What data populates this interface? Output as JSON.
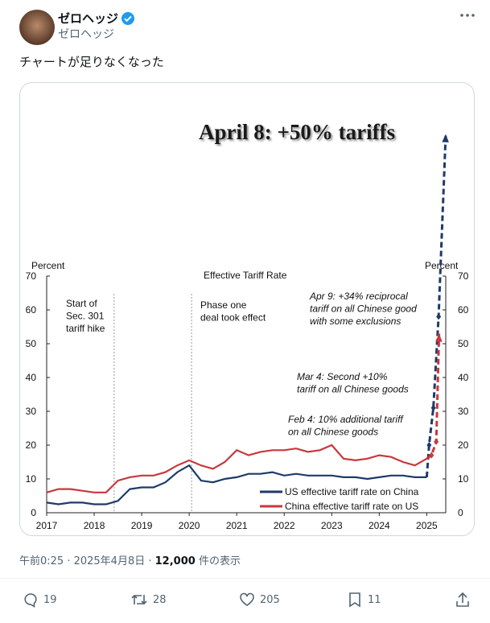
{
  "tweet": {
    "display_name": "ゼロヘッジ",
    "handle": "ゼロヘッジ",
    "text": "チャートが足りなくなった",
    "timestamp": "午前0:25 · 2025年4月8日",
    "separator": "·",
    "views": "12,000",
    "views_label": "件の表示",
    "replies": "19",
    "retweets": "28",
    "likes": "205",
    "bookmarks": "11"
  },
  "chart_data": {
    "type": "line",
    "headline": "April 8: +50% tariffs",
    "title": "Effective Tariff Rate",
    "ylabel": "Percent",
    "y2label": "Percent",
    "x": [
      2017,
      2017.25,
      2017.5,
      2017.75,
      2018,
      2018.25,
      2018.5,
      2018.75,
      2019,
      2019.25,
      2019.5,
      2019.75,
      2020,
      2020.25,
      2020.5,
      2020.75,
      2021,
      2021.25,
      2021.5,
      2021.75,
      2022,
      2022.25,
      2022.5,
      2022.75,
      2023,
      2023.25,
      2023.5,
      2023.75,
      2024,
      2024.25,
      2024.5,
      2024.75,
      2025
    ],
    "xlim": [
      2017,
      2025.4
    ],
    "xticks": [
      2017,
      2018,
      2019,
      2020,
      2021,
      2022,
      2023,
      2024,
      2025
    ],
    "ylim": [
      0,
      70
    ],
    "yticks": [
      0,
      10,
      20,
      30,
      40,
      50,
      60,
      70
    ],
    "y2lim": [
      0,
      70
    ],
    "y2ticks": [
      0,
      10,
      20,
      30,
      40,
      50,
      60,
      70
    ],
    "series": [
      {
        "name": "US effective tariff rate on China",
        "color": "#1f3a68",
        "values": [
          3,
          2.5,
          3,
          3,
          2.5,
          2.5,
          3.5,
          7,
          7.5,
          7.5,
          9,
          12,
          14,
          9.5,
          9,
          10,
          10.5,
          11.5,
          11.5,
          12,
          11,
          11.5,
          11,
          11,
          11,
          10.5,
          10.5,
          10,
          10.5,
          11,
          11,
          10.5,
          10.5
        ]
      },
      {
        "name": "China effective tariff rate on US",
        "color": "#c8383c",
        "values": [
          6,
          7,
          7,
          6.5,
          6,
          6,
          9.5,
          10.5,
          11,
          11,
          12,
          14,
          15.5,
          14,
          13,
          15,
          18.5,
          17,
          18,
          18.5,
          18.5,
          19,
          18,
          18.5,
          20,
          16,
          15.5,
          16,
          17,
          16.5,
          15,
          14,
          16
        ]
      },
      {
        "color": "#1f3a68",
        "dashed": true,
        "x": [
          2025,
          2025.05,
          2025.14,
          2025.25,
          2025.4
        ],
        "values": [
          10.5,
          20,
          31,
          58,
          112
        ]
      },
      {
        "color": "#c8383c",
        "dashed": true,
        "x": [
          2025,
          2025.1,
          2025.2,
          2025.26
        ],
        "values": [
          16,
          17,
          21,
          53
        ]
      }
    ],
    "vlines": [
      2018.42,
      2020.05
    ],
    "annotations": [
      [
        "Start of",
        "Sec. 301",
        "tariff hike"
      ],
      [
        "Phase one",
        "deal took effect"
      ],
      [
        "Apr 9: +34% reciprocal",
        "tariff on all Chinese good",
        "with some exclusions"
      ],
      [
        "Mar 4: Second +10%",
        "tariff on all Chinese goods"
      ],
      [
        "Feb 4: 10% additional tariff",
        "on all Chinese goods"
      ]
    ]
  }
}
